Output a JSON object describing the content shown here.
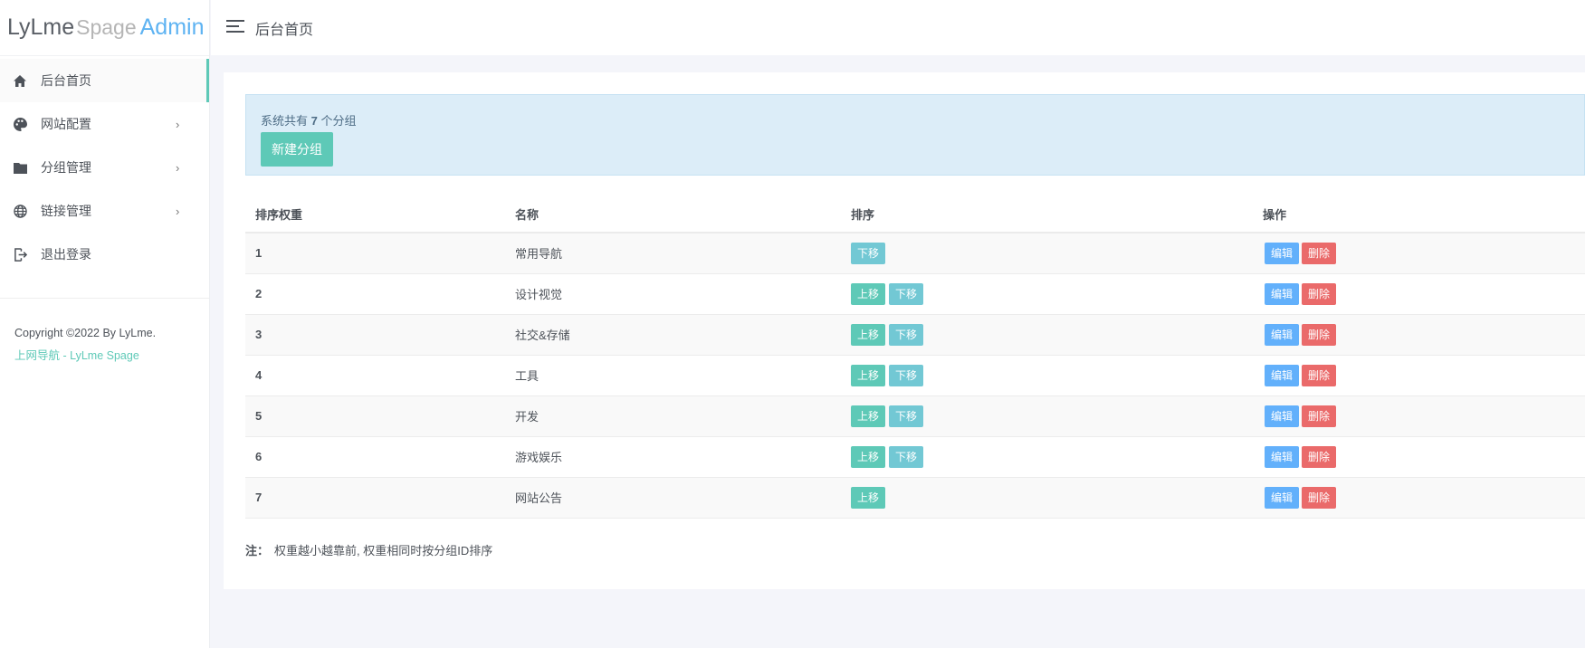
{
  "logo": {
    "part1": "LyLme",
    "part2": "Spage",
    "part3": "Admin"
  },
  "header": {
    "title": "后台首页"
  },
  "sidebar": {
    "items": [
      {
        "label": "后台首页",
        "icon": "home-icon",
        "active": true
      },
      {
        "label": "网站配置",
        "icon": "palette-icon",
        "arrow": true
      },
      {
        "label": "分组管理",
        "icon": "folder-icon",
        "arrow": true
      },
      {
        "label": "链接管理",
        "icon": "globe-icon",
        "arrow": true
      },
      {
        "label": "退出登录",
        "icon": "logout-icon"
      }
    ],
    "copyright": "Copyright ©2022 By LyLme.",
    "link": "上网导航 - LyLme Spage"
  },
  "alert": {
    "prefix": "系统共有",
    "count": "7",
    "suffix": "个分组",
    "new_button": "新建分组"
  },
  "table": {
    "headers": [
      "排序权重",
      "名称",
      "排序",
      "操作"
    ],
    "rows": [
      {
        "weight": "1",
        "name": "常用导航",
        "up": false,
        "down": true
      },
      {
        "weight": "2",
        "name": "设计视觉",
        "up": true,
        "down": true
      },
      {
        "weight": "3",
        "name": "社交&存储",
        "up": true,
        "down": true
      },
      {
        "weight": "4",
        "name": "工具",
        "up": true,
        "down": true
      },
      {
        "weight": "5",
        "name": "开发",
        "up": true,
        "down": true
      },
      {
        "weight": "6",
        "name": "游戏娱乐",
        "up": true,
        "down": true
      },
      {
        "weight": "7",
        "name": "网站公告",
        "up": true,
        "down": false
      }
    ],
    "labels": {
      "up": "上移",
      "down": "下移",
      "edit": "编辑",
      "delete": "删除"
    }
  },
  "note": {
    "label": "注：",
    "text": "权重越小越靠前, 权重相同时按分组ID排序"
  },
  "colors": {
    "accent": "#5ec9b7",
    "up": "#5ec9b7",
    "down": "#72c8d4",
    "edit": "#62b0fb",
    "delete": "#ea6a6a"
  }
}
